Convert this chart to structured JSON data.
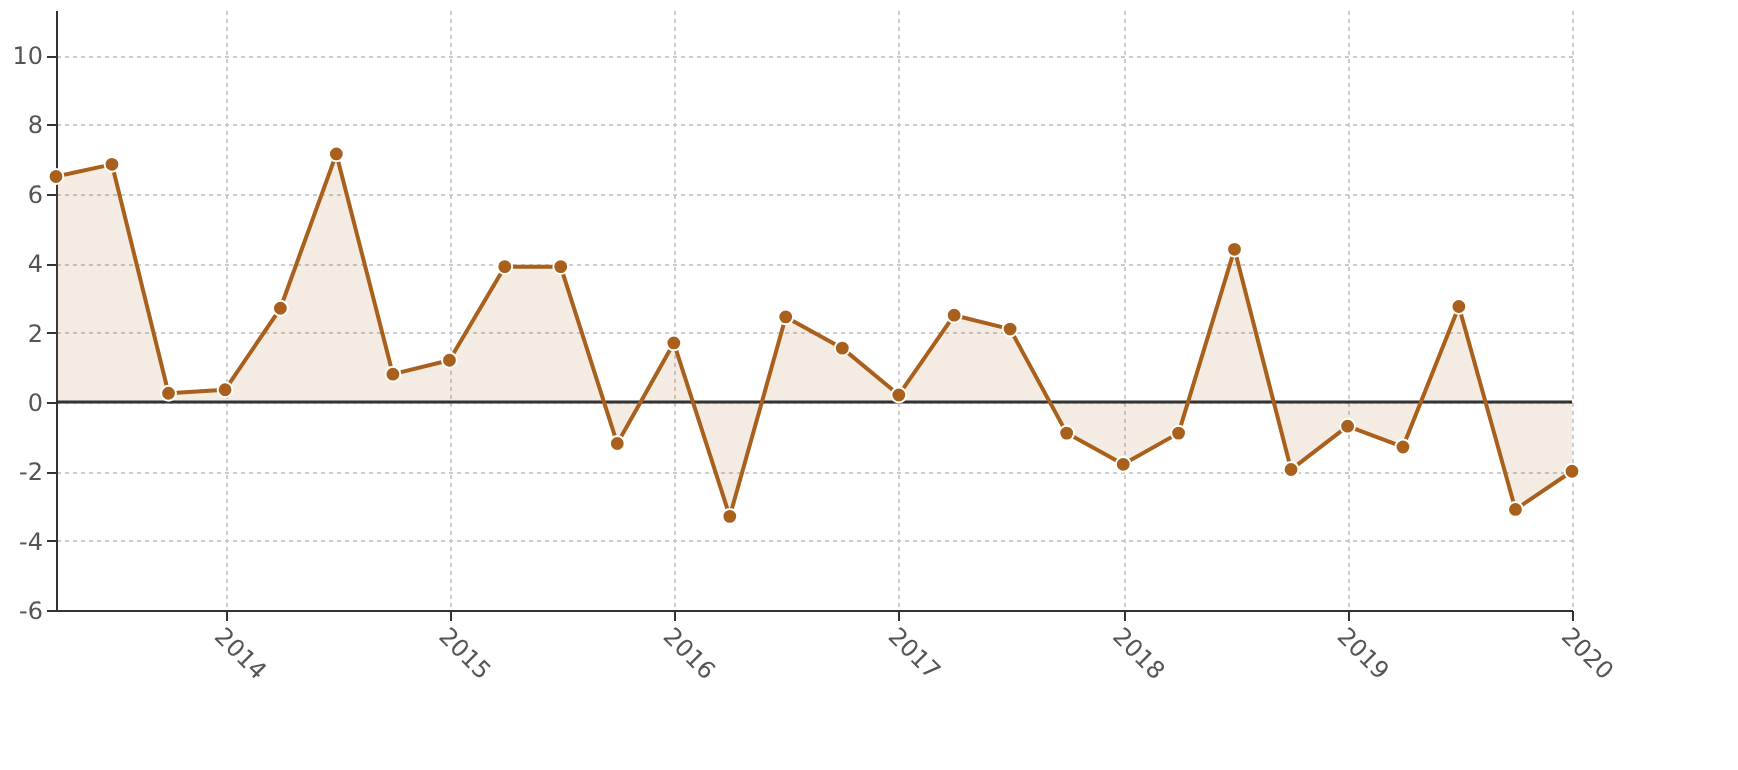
{
  "chart_data": {
    "type": "area",
    "x": [
      "2013-04",
      "2013-07",
      "2013-10",
      "2014-01",
      "2014-04",
      "2014-07",
      "2014-10",
      "2015-01",
      "2015-04",
      "2015-07",
      "2015-10",
      "2016-01",
      "2016-04",
      "2016-07",
      "2016-10",
      "2017-01",
      "2017-04",
      "2017-07",
      "2017-10",
      "2018-01",
      "2018-04",
      "2018-07",
      "2018-10",
      "2019-01",
      "2019-04",
      "2019-07",
      "2019-10",
      "2020-01"
    ],
    "series": [
      {
        "color": "#a8601c",
        "values": [
          6.5,
          6.85,
          0.25,
          0.35,
          2.7,
          7.15,
          0.8,
          1.2,
          3.9,
          3.9,
          -1.2,
          1.7,
          -3.3,
          2.45,
          1.55,
          0.2,
          2.5,
          2.1,
          -0.9,
          -1.8,
          -0.9,
          4.4,
          -1.95,
          -0.7,
          -1.3,
          2.75,
          -3.1,
          -2.0
        ]
      }
    ],
    "xlim": [
      "2013-04",
      "2020-01"
    ],
    "xticks": [
      "2014",
      "2015",
      "2016",
      "2017",
      "2018",
      "2019",
      "2020"
    ],
    "ylim": [
      -6,
      11.3
    ],
    "yticks": [
      -6,
      -4,
      -2,
      0,
      2,
      4,
      6,
      8,
      10
    ],
    "ref_lines": [
      {
        "axis": "y",
        "value": 0,
        "color": "#333333"
      }
    ],
    "grid": true,
    "marker": "circle"
  }
}
